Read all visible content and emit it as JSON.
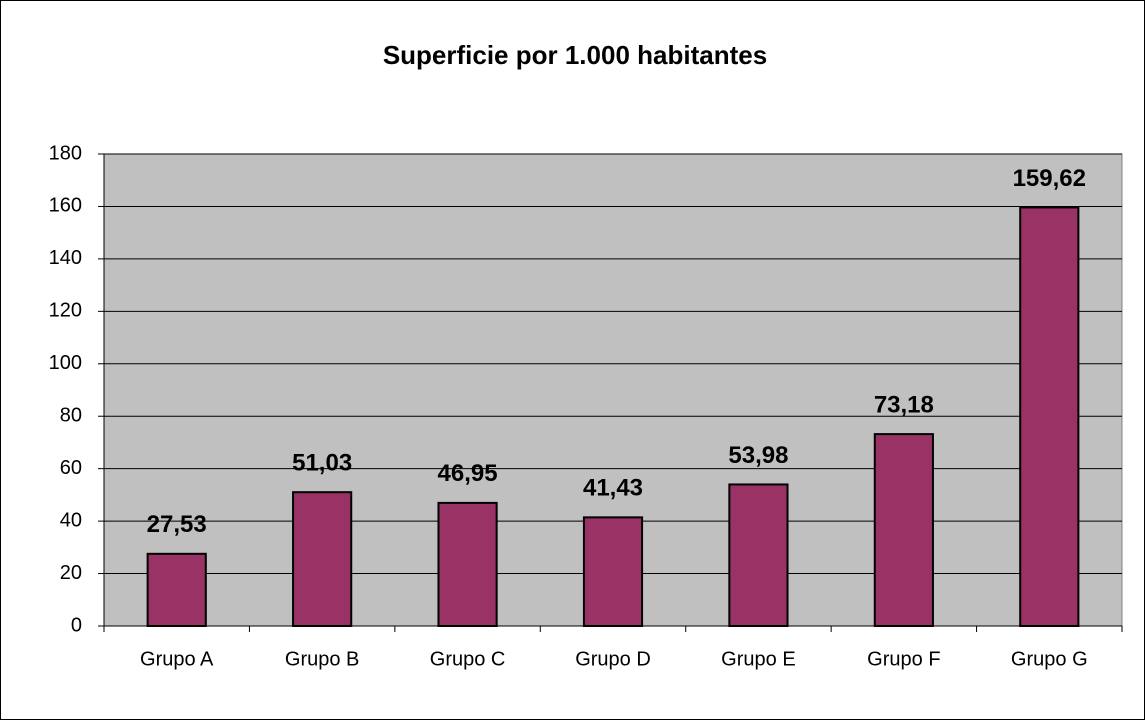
{
  "chart_data": {
    "type": "bar",
    "title": "Superficie por 1.000 habitantes",
    "categories": [
      "Grupo A",
      "Grupo B",
      "Grupo C",
      "Grupo D",
      "Grupo E",
      "Grupo F",
      "Grupo G"
    ],
    "values": [
      27.53,
      51.03,
      46.95,
      41.43,
      53.98,
      73.18,
      159.62
    ],
    "value_labels": [
      "27,53",
      "51,03",
      "46,95",
      "41,43",
      "53,98",
      "73,18",
      "159,62"
    ],
    "color": "#993366",
    "plot_background": "#c0c0c0",
    "ylim": [
      0,
      180
    ],
    "yticks": [
      0,
      20,
      40,
      60,
      80,
      100,
      120,
      140,
      160,
      180
    ],
    "grid": true
  }
}
